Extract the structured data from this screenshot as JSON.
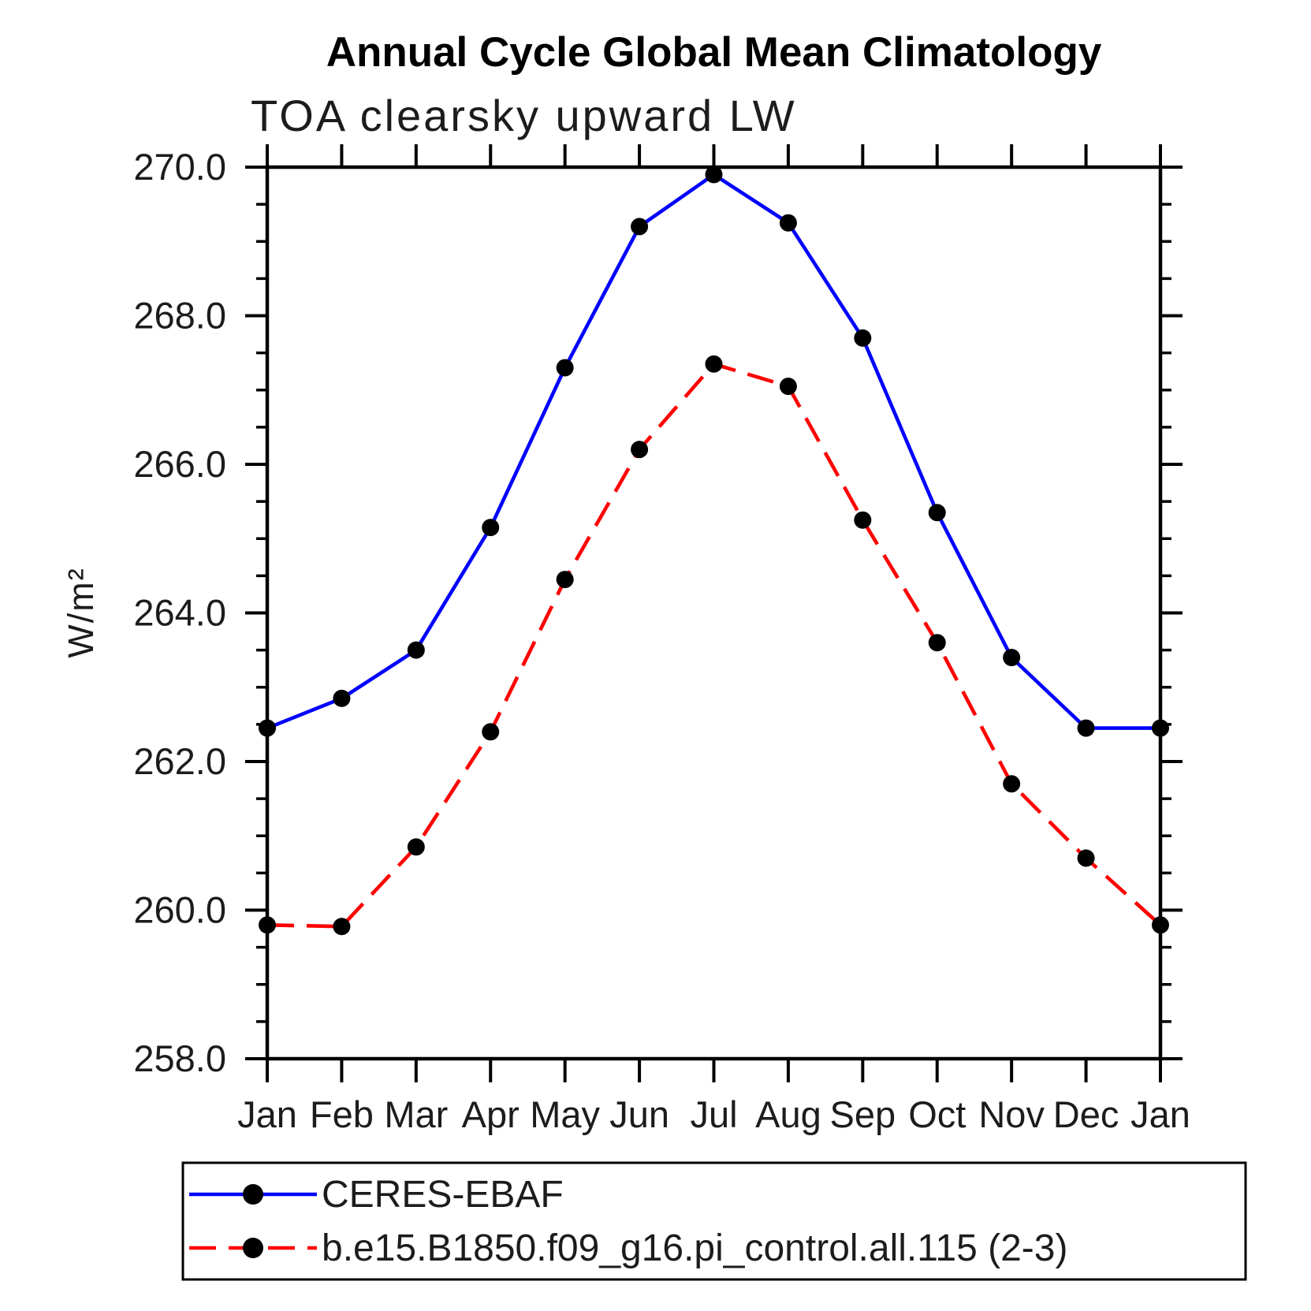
{
  "chart_data": {
    "type": "line",
    "title": "Annual Cycle Global Mean Climatology",
    "subtitle": "TOA clearsky upward LW",
    "ylabel": "W/m²",
    "x_categories": [
      "Jan",
      "Feb",
      "Mar",
      "Apr",
      "May",
      "Jun",
      "Jul",
      "Aug",
      "Sep",
      "Oct",
      "Nov",
      "Dec",
      "Jan"
    ],
    "ylim": [
      258.0,
      270.0
    ],
    "y_major_tick_step": 2.0,
    "y_minor_tick_step": 0.5,
    "y_tick_labels": [
      "258.0",
      "260.0",
      "262.0",
      "264.0",
      "266.0",
      "268.0",
      "270.0"
    ],
    "grid": false,
    "legend_position": "below-plot-left",
    "marker": {
      "shape": "circle",
      "color": "#000000",
      "radius_px": 11
    },
    "axis_color": "#000000",
    "series": [
      {
        "name": "CERES-EBAF",
        "color": "#0000ff",
        "line_style": "solid",
        "values": [
          262.45,
          262.85,
          263.5,
          265.15,
          267.3,
          269.2,
          269.9,
          269.25,
          267.7,
          265.35,
          263.4,
          262.45,
          262.45
        ]
      },
      {
        "name": "b.e15.B1850.f09_g16.pi_control.all.115 (2-3)",
        "color": "#ff0000",
        "line_style": "dashed",
        "values": [
          259.8,
          259.78,
          260.85,
          262.4,
          264.45,
          266.2,
          267.35,
          267.05,
          265.25,
          263.6,
          261.7,
          260.7,
          259.8
        ]
      }
    ]
  }
}
